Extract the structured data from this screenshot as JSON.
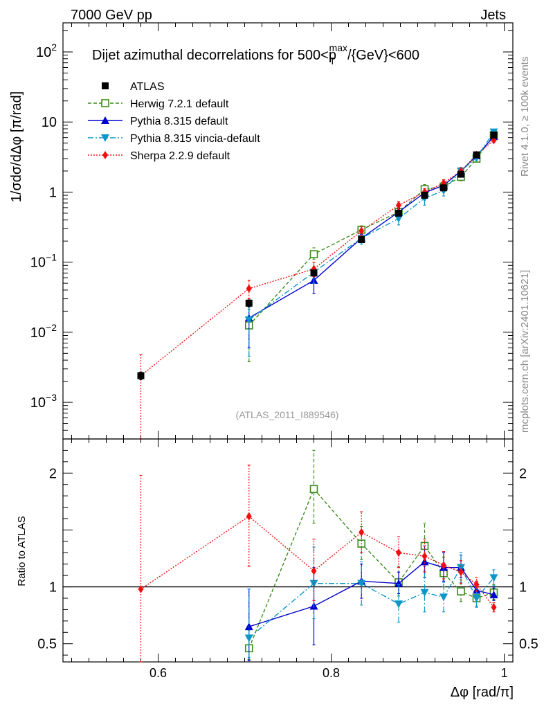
{
  "header": {
    "left": "7000 GeV pp",
    "right": "Jets"
  },
  "side_labels": {
    "rivet": "Rivet 4.1.0, ≥ 100k events",
    "mcplots": "mcplots.cern.ch [arXiv:2401.10621]"
  },
  "chart_data": {
    "type": "scatter",
    "title_prefix": "Dijet azimuthal decorrelations for 500<p",
    "title_sup": "max",
    "title_sub": "T",
    "title_suffix": "/{GeV}<600",
    "watermark": "(ATLAS_2011_I889546)",
    "xlabel": "Δφ [rad/π]",
    "ylabel": "1/σdσ/dΔφ [π/rad]",
    "ratio_ylabel": "Ratio to ATLAS",
    "xlim": [
      0.49,
      1.01
    ],
    "ylim": [
      0.0003,
      260
    ],
    "ratio_ylim": [
      0.34,
      2.3
    ],
    "x_ticks": [
      {
        "v": 0.6,
        "label": "0.6"
      },
      {
        "v": 0.8,
        "label": "0.8"
      },
      {
        "v": 1.0,
        "label": "1"
      }
    ],
    "y_ticks": [
      {
        "v": 0.001,
        "base": "10",
        "exp": "−3"
      },
      {
        "v": 0.01,
        "base": "10",
        "exp": "−2"
      },
      {
        "v": 0.1,
        "base": "10",
        "exp": "−1"
      },
      {
        "v": 1,
        "base": "1",
        "exp": ""
      },
      {
        "v": 10,
        "base": "10",
        "exp": ""
      },
      {
        "v": 100,
        "base": "10",
        "exp": "2"
      }
    ],
    "ratio_ticks": [
      {
        "v": 0.5,
        "label": "0.5"
      },
      {
        "v": 1,
        "label": "1"
      },
      {
        "v": 2,
        "label": "2"
      }
    ],
    "series": [
      {
        "name": "ATLAS",
        "color": "#000000",
        "marker": "square-filled",
        "line": "none",
        "x": [
          0.58,
          0.705,
          0.78,
          0.835,
          0.878,
          0.908,
          0.93,
          0.95,
          0.968,
          0.988
        ],
        "y": [
          0.0024,
          0.026,
          0.07,
          0.21,
          0.5,
          0.9,
          1.15,
          1.8,
          3.4,
          6.5
        ],
        "err": [
          0.0003,
          0.003,
          0.006,
          0.02,
          0.04,
          0.07,
          0.08,
          0.12,
          0.2,
          0.4
        ]
      },
      {
        "name": "Herwig 7.2.1 default",
        "color": "#3a8a1c",
        "marker": "square-open",
        "line": "dashed",
        "x": [
          0.705,
          0.78,
          0.835,
          0.878,
          0.908,
          0.93,
          0.95,
          0.968,
          0.988
        ],
        "y": [
          0.0125,
          0.13,
          0.29,
          0.52,
          1.1,
          1.2,
          1.65,
          3.0,
          6.5
        ],
        "ylo": [
          0.0038,
          0.11,
          0.25,
          0.44,
          0.93,
          1.02,
          1.45,
          2.7,
          6.0
        ],
        "yhi": [
          0.021,
          0.16,
          0.33,
          0.6,
          1.28,
          1.38,
          1.85,
          3.3,
          7.0
        ],
        "ratio": [
          0.46,
          1.86,
          1.38,
          1.04,
          1.36,
          1.12,
          0.96,
          0.9,
          0.95
        ],
        "rlo": [
          0.36,
          1.56,
          1.24,
          0.92,
          1.18,
          1.0,
          0.87,
          0.83,
          0.89
        ],
        "rhi": [
          0.62,
          2.2,
          1.53,
          1.18,
          1.56,
          1.26,
          1.06,
          0.98,
          1.02
        ]
      },
      {
        "name": "Pythia 8.315 default",
        "color": "#0000d0",
        "marker": "triangle-up",
        "line": "solid",
        "x": [
          0.705,
          0.78,
          0.835,
          0.878,
          0.908,
          0.93,
          0.95,
          0.968,
          0.988
        ],
        "y": [
          0.016,
          0.055,
          0.22,
          0.52,
          0.98,
          1.25,
          2.0,
          3.3,
          6.2
        ],
        "ylo": [
          0.006,
          0.036,
          0.19,
          0.46,
          0.86,
          1.1,
          1.8,
          3.0,
          5.8
        ],
        "yhi": [
          0.026,
          0.076,
          0.25,
          0.58,
          1.12,
          1.4,
          2.2,
          3.6,
          6.6
        ],
        "ratio": [
          0.65,
          0.83,
          1.05,
          1.03,
          1.22,
          1.17,
          1.17,
          0.97,
          0.93
        ],
        "rlo": [
          0.35,
          0.49,
          0.9,
          0.94,
          1.08,
          1.05,
          1.08,
          0.9,
          0.88
        ],
        "rhi": [
          0.98,
          1.17,
          1.2,
          1.13,
          1.36,
          1.3,
          1.28,
          1.05,
          0.99
        ]
      },
      {
        "name": "Pythia 8.315 vincia-default",
        "color": "#0a96c8",
        "marker": "triangle-down",
        "line": "dashdot",
        "x": [
          0.705,
          0.78,
          0.835,
          0.878,
          0.908,
          0.93,
          0.95,
          0.968,
          0.988
        ],
        "y": [
          0.015,
          0.072,
          0.22,
          0.42,
          0.82,
          1.05,
          2.0,
          3.1,
          7.2
        ],
        "ylo": [
          0.0045,
          0.05,
          0.18,
          0.34,
          0.65,
          0.88,
          1.75,
          2.8,
          6.6
        ],
        "yhi": [
          0.026,
          0.1,
          0.26,
          0.5,
          0.99,
          1.22,
          2.25,
          3.4,
          7.8
        ],
        "ratio": [
          0.55,
          1.03,
          1.03,
          0.85,
          0.95,
          0.91,
          1.17,
          0.9,
          1.08
        ],
        "rlo": [
          0.38,
          0.72,
          0.84,
          0.69,
          0.78,
          0.78,
          1.04,
          0.82,
          1.01
        ],
        "rhi": [
          0.98,
          1.35,
          1.22,
          1.02,
          1.14,
          1.04,
          1.3,
          0.98,
          1.15
        ]
      },
      {
        "name": "Sherpa 2.2.9 default",
        "color": "#ee1010",
        "marker": "diamond",
        "line": "dotted",
        "x": [
          0.58,
          0.705,
          0.78,
          0.835,
          0.878,
          0.908,
          0.93,
          0.95,
          0.968,
          0.988
        ],
        "y": [
          0.0024,
          0.042,
          0.08,
          0.28,
          0.65,
          1.0,
          1.35,
          2.0,
          3.4,
          5.5
        ],
        "ylo": [
          0.0002,
          0.03,
          0.062,
          0.24,
          0.57,
          0.88,
          1.2,
          1.8,
          3.1,
          5.1
        ],
        "yhi": [
          0.0048,
          0.055,
          0.1,
          0.32,
          0.73,
          1.12,
          1.5,
          2.2,
          3.7,
          5.9
        ],
        "ratio": [
          0.98,
          1.62,
          1.14,
          1.48,
          1.3,
          1.27,
          1.19,
          1.13,
          1.02,
          0.82
        ],
        "rlo": [
          0.3,
          1.18,
          0.88,
          1.3,
          1.17,
          1.13,
          1.07,
          1.03,
          0.96,
          0.78
        ],
        "rhi": [
          1.98,
          2.07,
          1.42,
          1.66,
          1.44,
          1.42,
          1.31,
          1.23,
          1.08,
          0.86
        ]
      }
    ]
  }
}
